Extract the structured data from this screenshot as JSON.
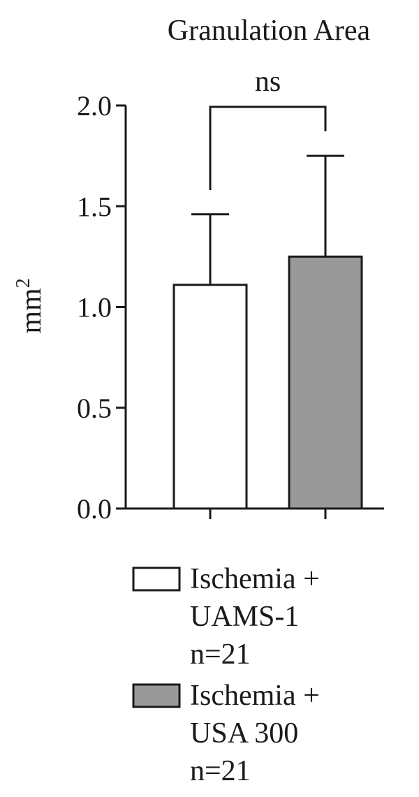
{
  "chart_data": {
    "type": "bar",
    "title": "Granulation Area",
    "ylabel": "mm",
    "ylabel_superscript": "2",
    "ylim": [
      0,
      2.0
    ],
    "yticks": [
      "0.0",
      "0.5",
      "1.0",
      "1.5",
      "2.0"
    ],
    "significance": {
      "label": "ns",
      "between": [
        0,
        1
      ]
    },
    "grid": false,
    "legend_placement": "bottom",
    "series": [
      {
        "name": "Ischemia + UAMS-1 n=21",
        "legend_lines": [
          "Ischemia +",
          "UAMS-1",
          "n=21"
        ],
        "value": 1.11,
        "error": 0.35,
        "color": "#ffffff"
      },
      {
        "name": "Ischemia + USA 300 n=21",
        "legend_lines": [
          "Ischemia +",
          "USA 300",
          "n=21"
        ],
        "value": 1.25,
        "error": 0.5,
        "color": "#999999"
      }
    ]
  }
}
